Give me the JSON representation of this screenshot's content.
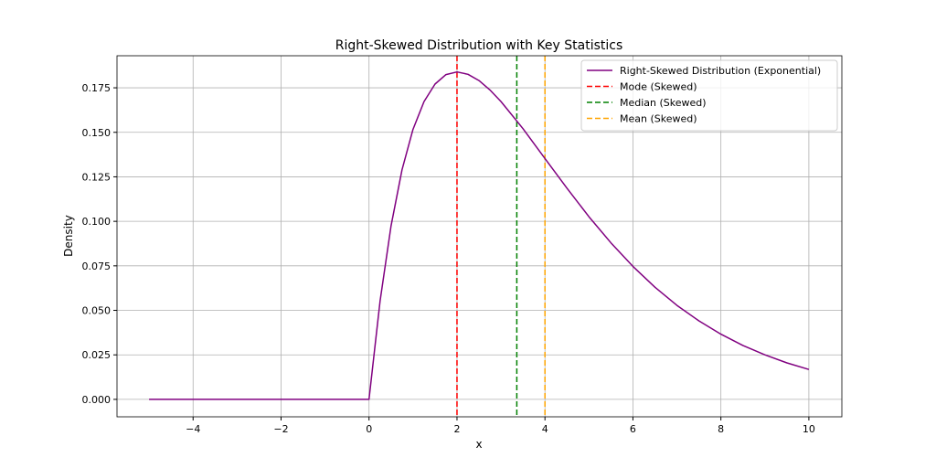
{
  "chart_data": {
    "type": "line",
    "title": "Right-Skewed Distribution with Key Statistics",
    "xlabel": "x",
    "ylabel": "Density",
    "xlim": [
      -5.73,
      10.75
    ],
    "ylim": [
      -0.0098,
      0.193
    ],
    "grid": true,
    "legend_placement": "top-right",
    "xticks": [
      -4,
      -2,
      0,
      2,
      4,
      6,
      8,
      10
    ],
    "xtick_labels": [
      "−4",
      "−2",
      "0",
      "2",
      "4",
      "6",
      "8",
      "10"
    ],
    "yticks": [
      0,
      0.025,
      0.05,
      0.075,
      0.1,
      0.125,
      0.15,
      0.175
    ],
    "ytick_labels": [
      "0.000",
      "0.025",
      "0.050",
      "0.075",
      "0.100",
      "0.125",
      "0.150",
      "0.175"
    ],
    "series": [
      {
        "name": "Right-Skewed Distribution (Exponential)",
        "color": "#800080",
        "x": [
          -5,
          0,
          0.25,
          0.5,
          0.75,
          1,
          1.25,
          1.5,
          1.75,
          2,
          2.25,
          2.5,
          2.75,
          3,
          3.5,
          4,
          4.5,
          5,
          5.5,
          6,
          6.5,
          7,
          7.5,
          8,
          8.5,
          9,
          9.5,
          10
        ],
        "y": [
          0,
          0,
          0.0552,
          0.0974,
          0.1289,
          0.1516,
          0.1673,
          0.1771,
          0.1824,
          0.1839,
          0.1826,
          0.1791,
          0.1738,
          0.1673,
          0.1521,
          0.1353,
          0.1186,
          0.1026,
          0.0879,
          0.0747,
          0.063,
          0.0528,
          0.0441,
          0.0366,
          0.0303,
          0.025,
          0.0205,
          0.0168
        ]
      }
    ],
    "vlines": [
      {
        "name": "Mode (Skewed)",
        "x": 2,
        "color": "#ff0000"
      },
      {
        "name": "Median (Skewed)",
        "x": 3.36,
        "color": "#008000"
      },
      {
        "name": "Mean (Skewed)",
        "x": 4,
        "color": "#ffa500"
      }
    ]
  }
}
